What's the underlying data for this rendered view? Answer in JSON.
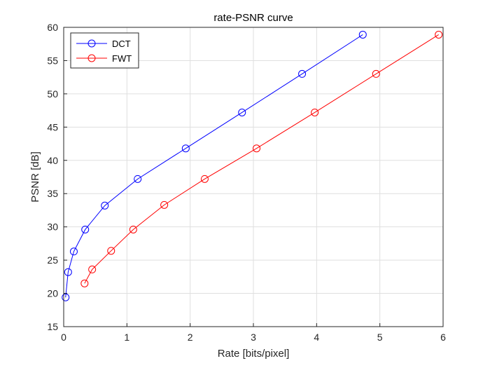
{
  "chart_data": {
    "type": "line",
    "title": "rate-PSNR curve",
    "xlabel": "Rate [bits/pixel]",
    "ylabel": "PSNR [dB]",
    "xlim": [
      0,
      6
    ],
    "ylim": [
      15,
      60
    ],
    "xticks": [
      0,
      1,
      2,
      3,
      4,
      5,
      6
    ],
    "yticks": [
      15,
      20,
      25,
      30,
      35,
      40,
      45,
      50,
      55,
      60
    ],
    "grid": true,
    "legend_position": "top-left",
    "series": [
      {
        "name": "DCT",
        "color": "#0000ff",
        "marker": "circle",
        "x": [
          0.03,
          0.07,
          0.16,
          0.34,
          0.65,
          1.17,
          1.93,
          2.82,
          3.77,
          4.73
        ],
        "y": [
          19.4,
          23.2,
          26.3,
          29.6,
          33.2,
          37.2,
          41.8,
          47.2,
          53.0,
          58.9
        ]
      },
      {
        "name": "FWT",
        "color": "#ff0000",
        "marker": "circle",
        "x": [
          0.33,
          0.45,
          0.75,
          1.1,
          1.59,
          2.23,
          3.05,
          3.97,
          4.94,
          5.93
        ],
        "y": [
          21.5,
          23.6,
          26.4,
          29.6,
          33.3,
          37.2,
          41.8,
          47.2,
          53.0,
          58.9
        ]
      }
    ]
  }
}
